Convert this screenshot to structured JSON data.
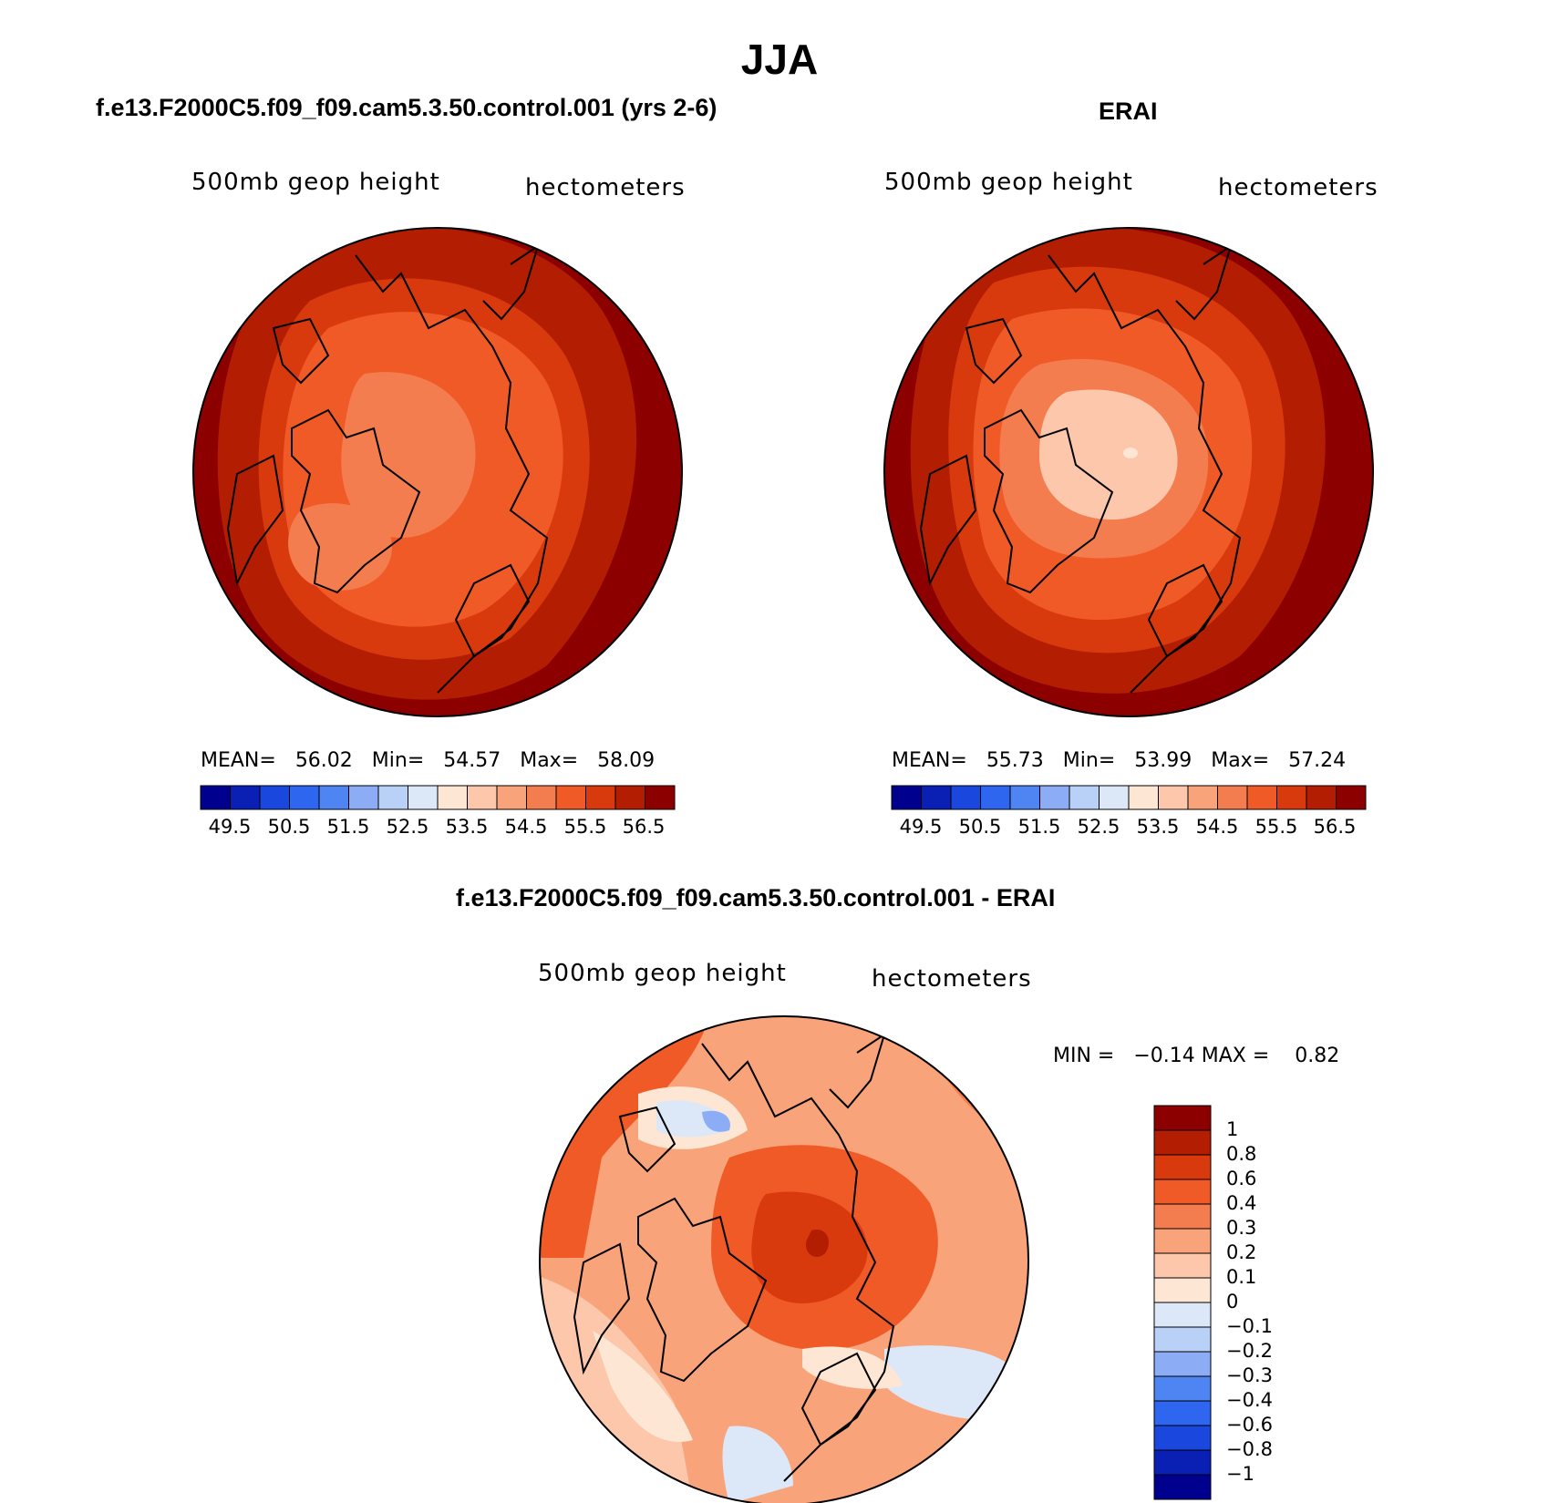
{
  "title": "JJA",
  "panels": [
    {
      "id": "model",
      "title": "f.e13.F2000C5.f09_f09.cam5.3.50.control.001 (yrs 2-6)",
      "left_label": "500mb  geop  height",
      "right_label": "hectometers",
      "stats": {
        "mean_label": "MEAN=",
        "mean": "56.02",
        "min_label": "Min=",
        "min": "54.57",
        "max_label": "Max=",
        "max": "58.09"
      },
      "colorbar_ticks": [
        "49.5",
        "50.5",
        "51.5",
        "52.5",
        "53.5",
        "54.5",
        "55.5",
        "56.5"
      ]
    },
    {
      "id": "obs",
      "title": "ERAI",
      "left_label": "500mb  geop  height",
      "right_label": "hectometers",
      "stats": {
        "mean_label": "MEAN=",
        "mean": "55.73",
        "min_label": "Min=",
        "min": "53.99",
        "max_label": "Max=",
        "max": "57.24"
      },
      "colorbar_ticks": [
        "49.5",
        "50.5",
        "51.5",
        "52.5",
        "53.5",
        "54.5",
        "55.5",
        "56.5"
      ]
    }
  ],
  "diff_panel": {
    "title": "f.e13.F2000C5.f09_f09.cam5.3.50.control.001 - ERAI",
    "left_label": "500mb  geop  height",
    "right_label": "hectometers",
    "stats": {
      "min_label": "MIN =",
      "min": "−0.14",
      "max_label": "MAX =",
      "max": "0.82"
    },
    "colorbar_ticks": [
      "1",
      "0.8",
      "0.6",
      "0.4",
      "0.3",
      "0.2",
      "0.1",
      "0",
      "−0.1",
      "−0.2",
      "−0.3",
      "−0.4",
      "−0.6",
      "−0.8",
      "−1"
    ]
  },
  "colors": {
    "abs_scale": [
      "#00008f",
      "#0a1fb4",
      "#1a47de",
      "#2e66f0",
      "#4f84f3",
      "#8cadf5",
      "#b9d0f7",
      "#dce8f8",
      "#fde6d3",
      "#fcc7aa",
      "#f9a37a",
      "#f47d4f",
      "#f05a27",
      "#d83a0e",
      "#b31d02",
      "#8c0000"
    ],
    "diff_scale": [
      "#8c0000",
      "#b31d02",
      "#d83a0e",
      "#f05a27",
      "#f47d4f",
      "#f9a37a",
      "#fcc7aa",
      "#fde6d3",
      "#dce8f8",
      "#b9d0f7",
      "#8cadf5",
      "#4f84f3",
      "#2e66f0",
      "#1a47de",
      "#0a1fb4",
      "#00008f"
    ]
  }
}
